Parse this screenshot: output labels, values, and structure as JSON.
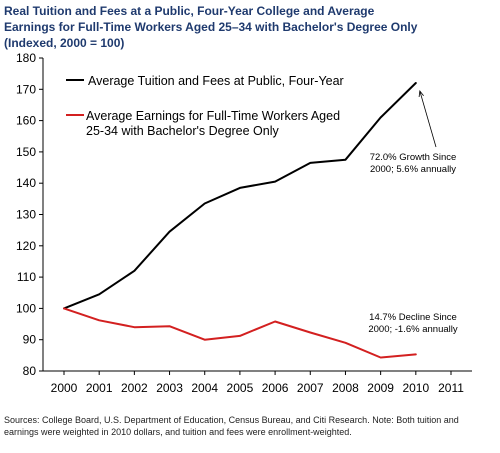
{
  "title": "Real Tuition and Fees at a Public, Four-Year College and Average Earnings for Full-Time Workers Aged 25–34 with Bachelor's Degree Only (Indexed, 2000 = 100)",
  "footnote": "Sources: College Board, U.S. Department of Education, Census Bureau, and Citi Research. Note: Both tuition and earnings were weighted in 2010 dollars, and tuition and fees were enrollment-weighted.",
  "chart_data": {
    "type": "line",
    "title": "Real Tuition and Fees at a Public, Four-Year College and Average Earnings for Full-Time Workers Aged 25–34 with Bachelor's Degree Only (Indexed, 2000 = 100)",
    "xlabel": "",
    "ylabel": "",
    "x": [
      "2000",
      "2001",
      "2002",
      "2003",
      "2004",
      "2005",
      "2006",
      "2007",
      "2008",
      "2009",
      "2010",
      "2011"
    ],
    "xlim": [
      "2000",
      "2011"
    ],
    "ylim": [
      80,
      180
    ],
    "yticks": [
      80,
      90,
      100,
      110,
      120,
      130,
      140,
      150,
      160,
      170,
      180
    ],
    "grid": false,
    "legend_position": "top-left",
    "series": [
      {
        "name": "Average Tuition and Fees at Public, Four-Year",
        "color": "#000000",
        "values": [
          100,
          104.5,
          112,
          124.5,
          133.5,
          138.5,
          140.5,
          146.5,
          147.5,
          161,
          172,
          null
        ]
      },
      {
        "name": "Average Earnings for Full-Time Workers Aged 25-34 with Bachelor's Degree Only",
        "color": "#d32020",
        "values": [
          100,
          96.2,
          94,
          94.3,
          90,
          91.2,
          95.8,
          92.3,
          89,
          84.3,
          85.3,
          null
        ]
      }
    ],
    "annotations": [
      {
        "text": "72.0% Growth Since 2000; 5.6% annually",
        "series": 0,
        "x": "2010"
      },
      {
        "text": "14.7% Decline Since 2000; -1.6% annually",
        "series": 1,
        "x": "2010"
      }
    ]
  }
}
